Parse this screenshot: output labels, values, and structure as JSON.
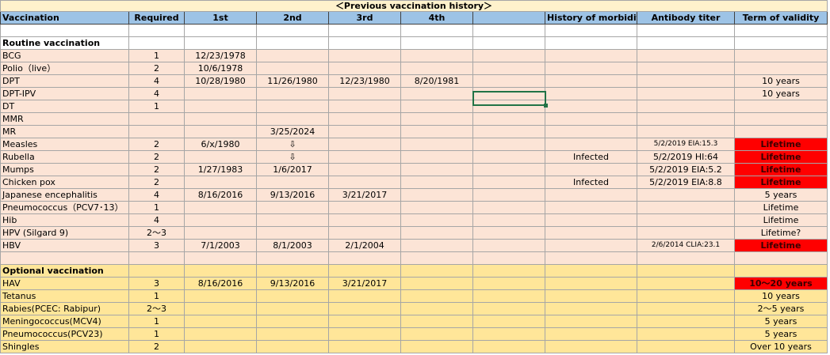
{
  "table": {
    "title": "＜Previous vaccination history＞",
    "title_fill": "#fff2cc",
    "header_fill": "#9dc3e6",
    "alert_fill": "#ff0000",
    "header": [
      "Vaccination",
      "Required",
      "1st",
      "2nd",
      "3rd",
      "4th",
      null,
      "History of morbidit",
      "Antibody titer",
      "Term of validity"
    ],
    "rows": [
      {
        "fill": "#ffffff",
        "cells": [
          null,
          null,
          null,
          null,
          null,
          null,
          null,
          null,
          null,
          null
        ]
      },
      {
        "fill": "#ffffff",
        "bold": true,
        "cells": [
          "Routine vaccination",
          null,
          null,
          null,
          null,
          null,
          null,
          null,
          null,
          null
        ]
      },
      {
        "fill": "#fce4d6",
        "cells": [
          "BCG",
          "1",
          "12/23/1978",
          null,
          null,
          null,
          null,
          null,
          null,
          null
        ]
      },
      {
        "fill": "#fce4d6",
        "cells": [
          "Polio（live）",
          "2",
          "10/6/1978",
          null,
          null,
          null,
          null,
          null,
          null,
          null
        ]
      },
      {
        "fill": "#fce4d6",
        "cells": [
          "DPT",
          "4",
          "10/28/1980",
          "11/26/1980",
          "12/23/1980",
          "8/20/1981",
          null,
          null,
          null,
          "10 years"
        ]
      },
      {
        "fill": "#fce4d6",
        "cells": [
          "DPT-IPV",
          "4",
          null,
          null,
          null,
          null,
          null,
          null,
          null,
          "10 years"
        ]
      },
      {
        "fill": "#fce4d6",
        "cells": [
          "DT",
          "1",
          null,
          null,
          null,
          null,
          null,
          null,
          null,
          null
        ]
      },
      {
        "fill": "#fce4d6",
        "cells": [
          "MMR",
          null,
          null,
          null,
          null,
          null,
          null,
          null,
          null,
          null
        ]
      },
      {
        "fill": "#fce4d6",
        "cells": [
          "MR",
          null,
          null,
          "3/25/2024",
          null,
          null,
          null,
          null,
          null,
          null
        ]
      },
      {
        "fill": "#fce4d6",
        "alert": true,
        "cells": [
          "Measles",
          "2",
          "6/x/1980",
          "⇩",
          null,
          null,
          null,
          null,
          "5/2/2019  EIA:15.3",
          "Lifetime"
        ]
      },
      {
        "fill": "#fce4d6",
        "alert": true,
        "cells": [
          "Rubella",
          "2",
          null,
          "⇩",
          null,
          null,
          null,
          "Infected",
          "5/2/2019  HI:64",
          "Lifetime"
        ]
      },
      {
        "fill": "#fce4d6",
        "alert": true,
        "cells": [
          "Mumps",
          "2",
          "1/27/1983",
          "1/6/2017",
          null,
          null,
          null,
          null,
          "5/2/2019  EIA:5.2",
          "Lifetime"
        ]
      },
      {
        "fill": "#fce4d6",
        "alert": true,
        "cells": [
          "Chicken pox",
          "2",
          null,
          null,
          null,
          null,
          null,
          "Infected",
          "5/2/2019  EIA:8.8",
          "Lifetime"
        ]
      },
      {
        "fill": "#fce4d6",
        "cells": [
          "Japanese encephalitis",
          "4",
          "8/16/2016",
          "9/13/2016",
          "3/21/2017",
          null,
          null,
          null,
          null,
          "5 years"
        ]
      },
      {
        "fill": "#fce4d6",
        "cells": [
          "Pneumococcus（PCV7･13）",
          "1",
          null,
          null,
          null,
          null,
          null,
          null,
          null,
          "Lifetime"
        ]
      },
      {
        "fill": "#fce4d6",
        "cells": [
          "Hib",
          "4",
          null,
          null,
          null,
          null,
          null,
          null,
          null,
          "Lifetime"
        ]
      },
      {
        "fill": "#fce4d6",
        "cells": [
          "HPV (Silgard 9)",
          "2～3",
          null,
          null,
          null,
          null,
          null,
          null,
          null,
          "Lifetime?"
        ]
      },
      {
        "fill": "#fce4d6",
        "alert": true,
        "cells": [
          "HBV",
          "3",
          "7/1/2003",
          "8/1/2003",
          "2/1/2004",
          null,
          null,
          null,
          "2/6/2014 CLIA:23.1",
          "Lifetime"
        ]
      },
      {
        "fill": "#fce4d6",
        "cells": [
          null,
          null,
          null,
          null,
          null,
          null,
          null,
          null,
          null,
          null
        ]
      },
      {
        "fill": "#ffe699",
        "bold": true,
        "cells": [
          "Optional vaccination",
          null,
          null,
          null,
          null,
          null,
          null,
          null,
          null,
          null
        ]
      },
      {
        "fill": "#ffe699",
        "alert": true,
        "cells": [
          "HAV",
          "3",
          "8/16/2016",
          "9/13/2016",
          "3/21/2017",
          null,
          null,
          null,
          null,
          "10～20 years"
        ]
      },
      {
        "fill": "#ffe699",
        "cells": [
          "Tetanus",
          "1",
          null,
          null,
          null,
          null,
          null,
          null,
          null,
          "10 years"
        ]
      },
      {
        "fill": "#ffe699",
        "cells": [
          "Rabies(PCEC: Rabipur)",
          "2～3",
          null,
          null,
          null,
          null,
          null,
          null,
          null,
          "2～5 years"
        ]
      },
      {
        "fill": "#ffe699",
        "cells": [
          "Meningococcus(MCV4)",
          "1",
          null,
          null,
          null,
          null,
          null,
          null,
          null,
          "5 years"
        ]
      },
      {
        "fill": "#ffe699",
        "cells": [
          "Pneumococcus(PCV23)",
          "1",
          null,
          null,
          null,
          null,
          null,
          null,
          null,
          "5 years"
        ]
      },
      {
        "fill": "#ffe699",
        "cells": [
          "Shingles",
          "2",
          null,
          null,
          null,
          null,
          null,
          null,
          null,
          "Over 10 years"
        ]
      }
    ]
  }
}
